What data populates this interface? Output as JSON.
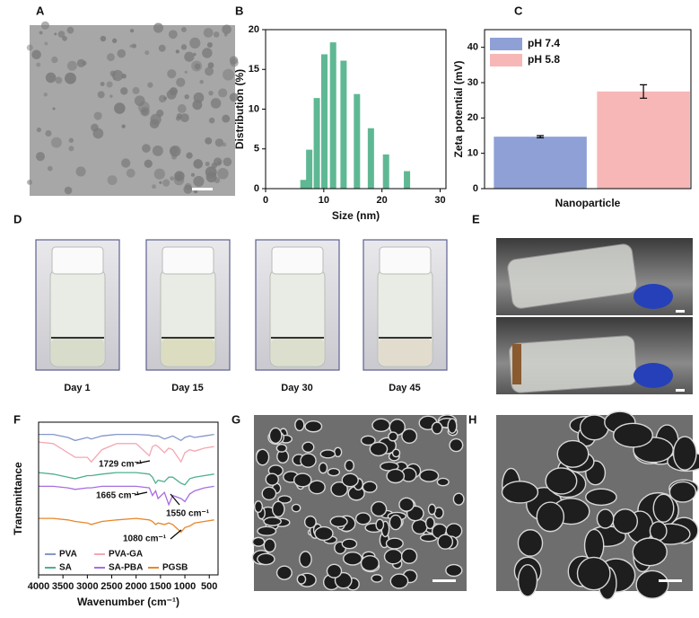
{
  "panel_labels": [
    "A",
    "B",
    "C",
    "D",
    "E",
    "F",
    "G",
    "H"
  ],
  "photo_captions": [
    "Day 1",
    "Day 15",
    "Day 30",
    "Day 45"
  ],
  "chart_data": [
    {
      "type": "bar",
      "x": [
        6.5,
        7.5,
        8.8,
        10.1,
        11.6,
        13.4,
        15.7,
        18.1,
        20.7,
        24.3
      ],
      "values": [
        1.1,
        4.9,
        11.4,
        16.9,
        18.4,
        16.1,
        11.9,
        7.6,
        4.3,
        2.2
      ],
      "color": "#5fb894",
      "xlabel": "Size (nm)",
      "ylabel": "Distribution (%)",
      "xlim": [
        0,
        31
      ],
      "xticks": [
        0,
        10,
        20,
        30
      ],
      "ylim": [
        0,
        20
      ],
      "yticks": [
        0,
        5,
        10,
        15,
        20
      ]
    },
    {
      "type": "bar",
      "categories": [
        "Nanoparticle"
      ],
      "series": [
        {
          "name": "pH 7.4",
          "color": "#8ea0d6",
          "values": [
            14.7
          ],
          "errors": [
            0.3
          ]
        },
        {
          "name": "pH 5.8",
          "color": "#f7b7b7",
          "values": [
            27.5
          ],
          "errors": [
            1.9
          ]
        }
      ],
      "ylabel": "Zeta potential (mV)",
      "ylim": [
        0,
        45
      ],
      "yticks": [
        0,
        10,
        20,
        30,
        40
      ],
      "legend": "upper left"
    },
    {
      "type": "line",
      "x": [
        4000,
        3700,
        3400,
        3250,
        3000,
        2920,
        2700,
        2400,
        2000,
        1729,
        1665,
        1600,
        1550,
        1420,
        1330,
        1250,
        1080,
        1000,
        900,
        800,
        600,
        400
      ],
      "series": [
        {
          "name": "PVA",
          "color": "#8497c9",
          "values": [
            92,
            92,
            90,
            88,
            90,
            89,
            91,
            92,
            92,
            91.5,
            91,
            91,
            91,
            89,
            90,
            91,
            88,
            90,
            91,
            90,
            91,
            92
          ]
        },
        {
          "name": "PVA-GA",
          "color": "#f4a7b3",
          "values": [
            87,
            86,
            80,
            77,
            77,
            74,
            82,
            86,
            86,
            78,
            84,
            85,
            84,
            80,
            83,
            82,
            74,
            80,
            82,
            81,
            83,
            84
          ]
        },
        {
          "name": "SA",
          "color": "#4fb08c",
          "values": [
            67,
            66,
            64,
            63,
            65,
            65,
            66,
            67,
            67,
            66,
            64,
            60,
            62,
            61,
            64,
            64,
            60,
            59,
            63,
            64,
            65,
            66
          ]
        },
        {
          "name": "SA-PBA",
          "color": "#a86ee0",
          "values": [
            58,
            58,
            57,
            56,
            57,
            57,
            58,
            58,
            58,
            57,
            52,
            55,
            50,
            54,
            46,
            52,
            50,
            48,
            53,
            55,
            57,
            58
          ]
        },
        {
          "name": "PGSB",
          "color": "#e8862a",
          "values": [
            37,
            37,
            36,
            35,
            34,
            33,
            35,
            36,
            37,
            36,
            35,
            33,
            34,
            33,
            34,
            33,
            28,
            31,
            32,
            34,
            35,
            36
          ]
        }
      ],
      "xlabel": "Wavenumber (cm⁻¹)",
      "ylabel": "Transmittance",
      "xlim": [
        4000,
        320
      ],
      "xticks": [
        4000,
        3500,
        3000,
        2500,
        2000,
        1500,
        1000,
        500
      ],
      "ylim": [
        0,
        100
      ],
      "legend": "lower left",
      "annotations": [
        "1729 cm⁻¹",
        "1665 cm⁻¹",
        "1550 cm⁻¹",
        "1080 cm⁻¹"
      ]
    }
  ]
}
